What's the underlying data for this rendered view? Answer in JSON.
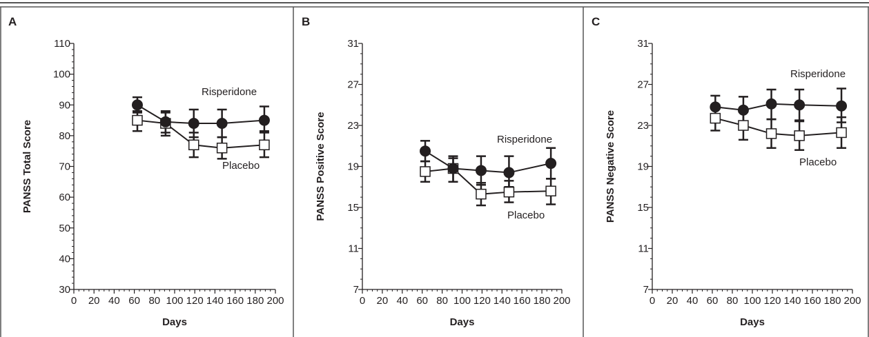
{
  "chart_data": [
    {
      "type": "line",
      "panel_label": "A",
      "ylabel": "PANSS Total Score",
      "xlabel": "Days",
      "xlim": [
        0,
        200
      ],
      "ylim": [
        30,
        110
      ],
      "xticks": [
        0,
        20,
        40,
        60,
        80,
        100,
        120,
        140,
        160,
        180,
        200
      ],
      "yticks": [
        30,
        40,
        50,
        60,
        70,
        80,
        90,
        100,
        110
      ],
      "x_minor_step": 5,
      "y_minor_step": 2,
      "grid": false,
      "series": [
        {
          "name": "Risperidone",
          "marker": "filled-circle",
          "x": [
            63,
            91,
            119,
            147,
            189
          ],
          "values": [
            90,
            84.5,
            84,
            84,
            85
          ],
          "err_low": [
            87.5,
            81,
            79.5,
            79.5,
            81
          ],
          "err_high": [
            92.5,
            88,
            88.5,
            88.5,
            89.5
          ]
        },
        {
          "name": "Placebo",
          "marker": "open-square",
          "x": [
            63,
            91,
            119,
            147,
            189
          ],
          "values": [
            85,
            84,
            77,
            76,
            77
          ],
          "err_low": [
            81.5,
            80,
            73,
            72.5,
            73
          ],
          "err_high": [
            88,
            87.5,
            81,
            79.5,
            81.5
          ]
        }
      ]
    },
    {
      "type": "line",
      "panel_label": "B",
      "ylabel": "PANSS Positive Score",
      "xlabel": "Days",
      "xlim": [
        0,
        200
      ],
      "ylim": [
        7,
        31
      ],
      "xticks": [
        0,
        20,
        40,
        60,
        80,
        100,
        120,
        140,
        160,
        180,
        200
      ],
      "yticks": [
        7,
        11,
        15,
        19,
        23,
        27,
        31
      ],
      "x_minor_step": 5,
      "y_minor_step": 1,
      "grid": false,
      "series": [
        {
          "name": "Risperidone",
          "marker": "filled-circle",
          "x": [
            63,
            91,
            119,
            147,
            189
          ],
          "values": [
            20.5,
            18.8,
            18.6,
            18.4,
            19.3
          ],
          "err_low": [
            19.5,
            17.5,
            17.2,
            17.0,
            17.8
          ],
          "err_high": [
            21.5,
            20.0,
            20.0,
            20.0,
            20.8
          ]
        },
        {
          "name": "Placebo",
          "marker": "open-square",
          "x": [
            63,
            91,
            119,
            147,
            189
          ],
          "values": [
            18.5,
            18.8,
            16.3,
            16.5,
            16.6
          ],
          "err_low": [
            17.5,
            17.5,
            15.2,
            15.5,
            15.3
          ],
          "err_high": [
            19.5,
            19.8,
            17.4,
            17.6,
            17.8
          ]
        }
      ]
    },
    {
      "type": "line",
      "panel_label": "C",
      "ylabel": "PANSS Negative Score",
      "xlabel": "Days",
      "xlim": [
        0,
        200
      ],
      "ylim": [
        7,
        31
      ],
      "xticks": [
        0,
        20,
        40,
        60,
        80,
        100,
        120,
        140,
        160,
        180,
        200
      ],
      "yticks": [
        7,
        11,
        15,
        19,
        23,
        27,
        31
      ],
      "x_minor_step": 5,
      "y_minor_step": 1,
      "grid": false,
      "series": [
        {
          "name": "Risperidone",
          "marker": "filled-circle",
          "x": [
            63,
            91,
            119,
            147,
            189
          ],
          "values": [
            24.8,
            24.5,
            25.1,
            25.0,
            24.9
          ],
          "err_low": [
            23.5,
            23.3,
            23.6,
            23.5,
            23.3
          ],
          "err_high": [
            25.9,
            25.8,
            26.5,
            26.5,
            26.6
          ]
        },
        {
          "name": "Placebo",
          "marker": "open-square",
          "x": [
            63,
            91,
            119,
            147,
            189
          ],
          "values": [
            23.7,
            23.0,
            22.2,
            22.0,
            22.3
          ],
          "err_low": [
            22.5,
            21.6,
            20.8,
            20.6,
            20.8
          ],
          "err_high": [
            24.8,
            24.3,
            23.6,
            23.4,
            23.8
          ]
        }
      ]
    }
  ],
  "colors": {
    "ink": "#231f20",
    "border": "#555555",
    "background": "#ffffff"
  }
}
